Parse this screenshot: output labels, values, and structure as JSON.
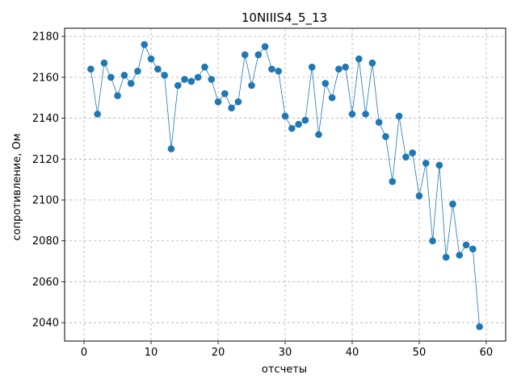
{
  "chart_data": {
    "type": "line",
    "title": "10NIIIS4_5_13",
    "xlabel": "отсчеты",
    "ylabel": "сопротивление, Ом",
    "xlim": [
      -2.9,
      62.9
    ],
    "ylim": [
      2031.0,
      2184.0
    ],
    "xticks": [
      0,
      10,
      20,
      30,
      40,
      50,
      60
    ],
    "yticks": [
      2040,
      2060,
      2080,
      2100,
      2120,
      2140,
      2160,
      2180
    ],
    "grid": true,
    "markers": true,
    "color": "#1f77b4",
    "x": [
      1,
      2,
      3,
      4,
      5,
      6,
      7,
      8,
      9,
      10,
      11,
      12,
      13,
      14,
      15,
      16,
      17,
      18,
      19,
      20,
      21,
      22,
      23,
      24,
      25,
      26,
      27,
      28,
      29,
      30,
      31,
      32,
      33,
      34,
      35,
      36,
      37,
      38,
      39,
      40,
      41,
      42,
      43,
      44,
      45,
      46,
      47,
      48,
      49,
      50,
      51,
      52,
      53,
      54,
      55,
      56,
      57,
      58,
      59
    ],
    "y": [
      2164,
      2142,
      2167,
      2160,
      2151,
      2161,
      2157,
      2163,
      2176,
      2169,
      2164,
      2161,
      2125,
      2156,
      2159,
      2158,
      2160,
      2165,
      2159,
      2148,
      2152,
      2145,
      2148,
      2171,
      2156,
      2171,
      2175,
      2164,
      2163,
      2141,
      2135,
      2137,
      2139,
      2165,
      2132,
      2157,
      2150,
      2164,
      2165,
      2142,
      2169,
      2142,
      2167,
      2138,
      2131,
      2109,
      2141,
      2121,
      2123,
      2102,
      2118,
      2080,
      2117,
      2072,
      2098,
      2073,
      2078,
      2076,
      2038
    ]
  }
}
